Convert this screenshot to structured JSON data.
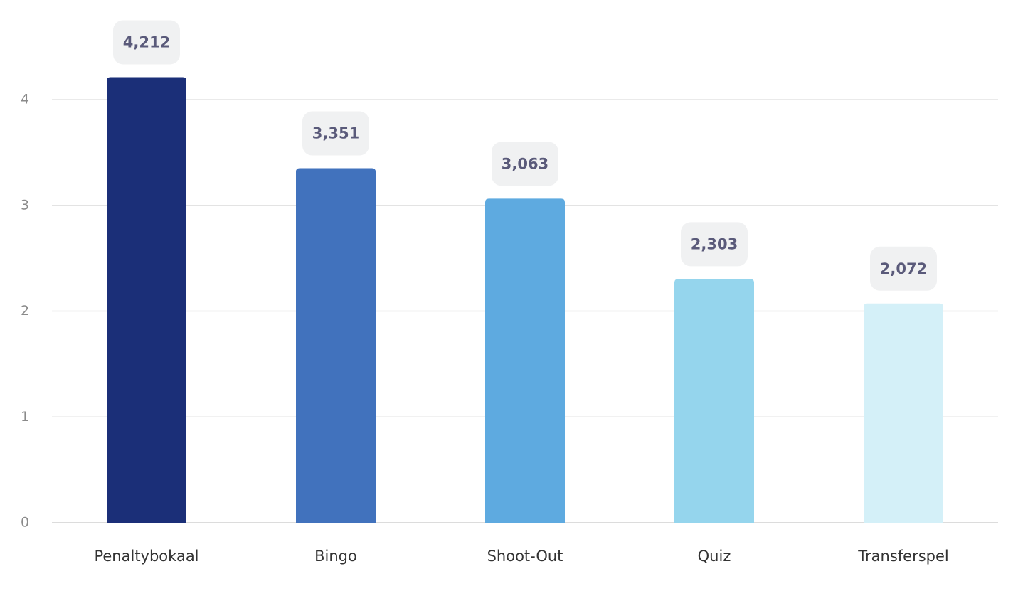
{
  "chart_data": {
    "type": "bar",
    "categories": [
      "Penaltybokaal",
      "Bingo",
      "Shoot-Out",
      "Quiz",
      "Transferspel"
    ],
    "values": [
      4.212,
      3.351,
      3.063,
      2.303,
      2.072
    ],
    "value_labels": [
      "4,212",
      "3,351",
      "3,063",
      "2,303",
      "2,072"
    ],
    "colors": [
      "#1b2f78",
      "#4172bd",
      "#5eaae0",
      "#95d5ed",
      "#d4f0f8"
    ],
    "ylim": [
      0,
      4
    ],
    "yticks": [
      0,
      1,
      2,
      3,
      4
    ],
    "grid": true
  }
}
